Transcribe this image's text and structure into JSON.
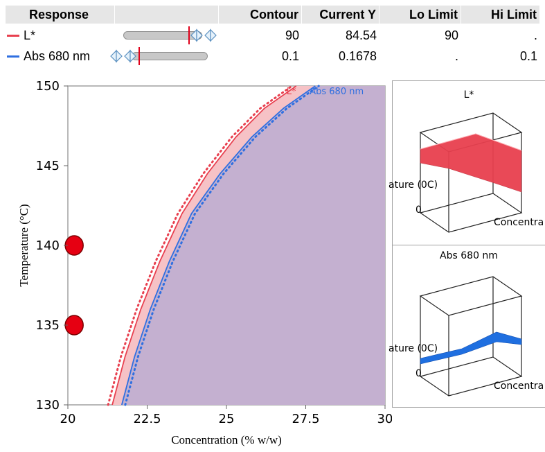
{
  "table": {
    "headers": [
      "Response",
      "",
      "Contour",
      "Current Y",
      "Lo Limit",
      "Hi Limit"
    ],
    "rows": [
      {
        "name": "L*",
        "color": "#e8404f",
        "contour": "90",
        "current_y": "84.54",
        "lo_limit": "90",
        "hi_limit": "."
      },
      {
        "name": "Abs 680 nm",
        "color": "#2f6fe0",
        "contour": "0.1",
        "current_y": "0.1678",
        "lo_limit": ".",
        "hi_limit": "0.1"
      }
    ]
  },
  "chart_data": {
    "type": "contour",
    "xlabel": "Concentration (% w/w)",
    "ylabel": "Temperature (°C)",
    "xlim": [
      20,
      30
    ],
    "ylim": [
      130,
      150
    ],
    "xticks": [
      "20",
      "22.5",
      "25",
      "27.5",
      "30"
    ],
    "yticks": [
      "130",
      "135",
      "140",
      "145",
      "150"
    ],
    "series": [
      {
        "name": "L*",
        "color": "#e8404f",
        "x": [
          21.4,
          21.8,
          22.3,
          22.9,
          23.6,
          24.4,
          25.3,
          26.2,
          27.2
        ],
        "y": [
          130,
          133,
          136,
          139,
          142,
          144.5,
          146.8,
          148.6,
          150
        ]
      },
      {
        "name": "Abs 680 nm",
        "color": "#2f6fe0",
        "x": [
          21.7,
          22.1,
          22.6,
          23.2,
          23.9,
          24.8,
          25.8,
          26.8,
          27.8
        ],
        "y": [
          130,
          133,
          136,
          139,
          142,
          144.5,
          146.8,
          148.6,
          150
        ]
      }
    ],
    "points": [
      {
        "x": 20.2,
        "y": 140
      },
      {
        "x": 20.2,
        "y": 135
      }
    ],
    "fill_colors": {
      "infeasible": "#c4b0d0",
      "band": "#f6c2c6"
    },
    "grid": false
  },
  "panels": [
    {
      "title": "L*",
      "ylabel_part": "ature (0C)",
      "origin": "0",
      "xlabel_part": "Concentra",
      "color": "#e8404f"
    },
    {
      "title": "Abs 680 nm",
      "ylabel_part": "ature (0C)",
      "origin": "0",
      "xlabel_part": "Concentra",
      "color": "#1f6fe0"
    }
  ]
}
